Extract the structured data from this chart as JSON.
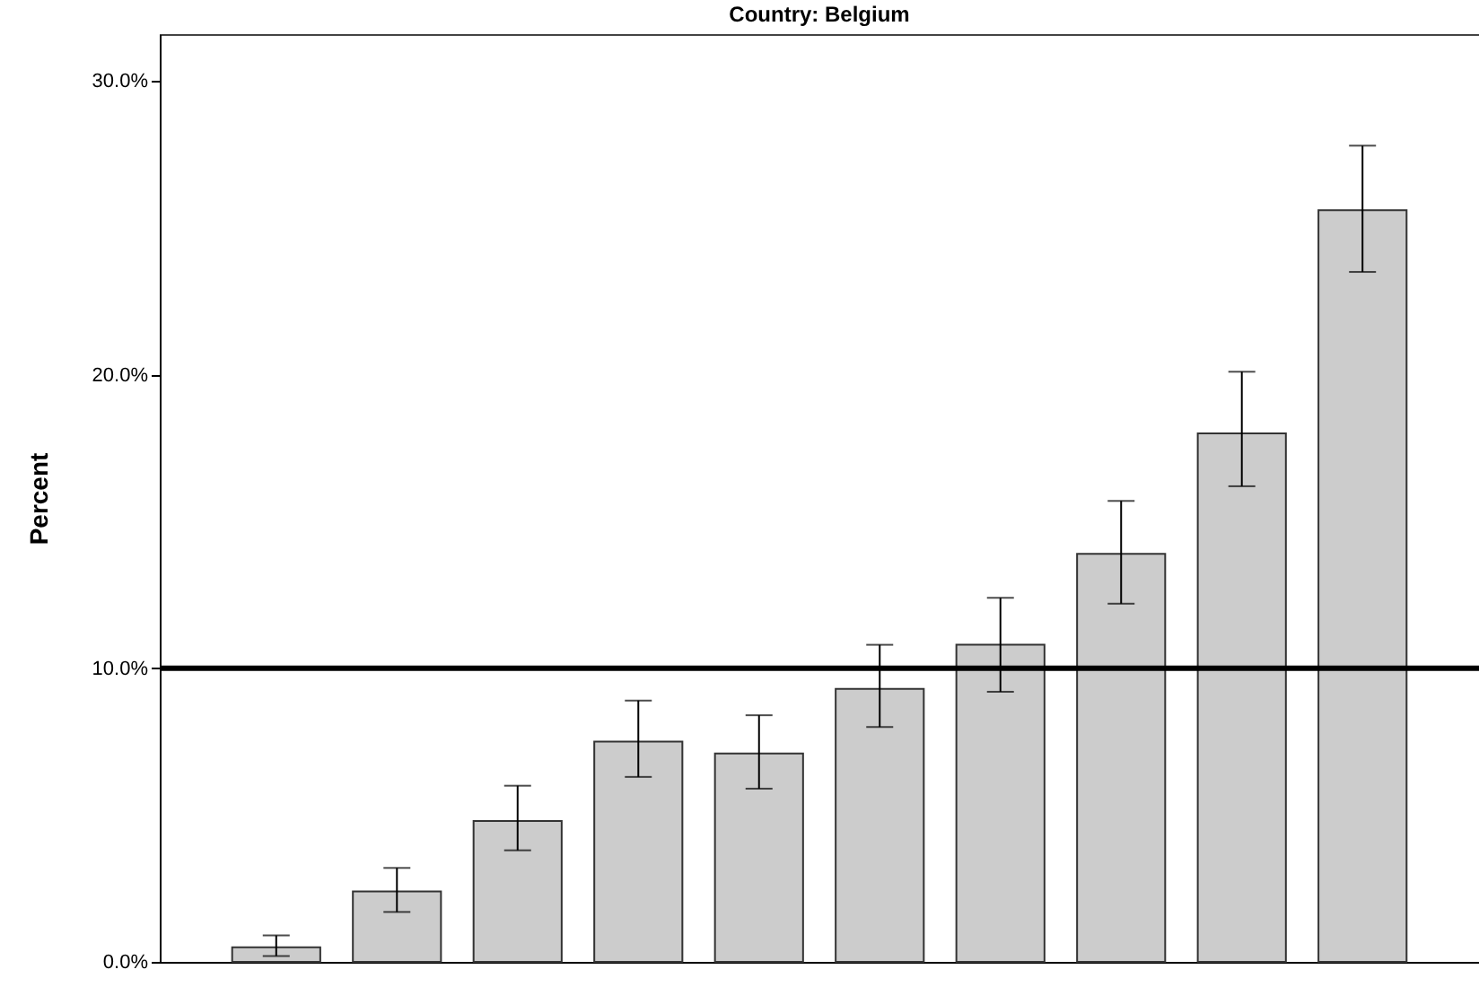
{
  "chart_data": {
    "type": "bar",
    "title": "Country: Belgium",
    "ylabel": "Percent",
    "categories": [
      null,
      null,
      null,
      null,
      null,
      null,
      null,
      null,
      null,
      null
    ],
    "values": [
      0.5,
      2.4,
      4.8,
      7.5,
      7.1,
      9.3,
      10.8,
      13.9,
      18.0,
      25.6
    ],
    "errors": [
      [
        0.2,
        0.9
      ],
      [
        1.7,
        3.2
      ],
      [
        3.8,
        6.0
      ],
      [
        6.3,
        8.9
      ],
      [
        5.9,
        8.4
      ],
      [
        8.0,
        10.8
      ],
      [
        9.2,
        12.4
      ],
      [
        12.2,
        15.7
      ],
      [
        16.2,
        20.1
      ],
      [
        23.5,
        27.8
      ]
    ],
    "color": "#cccccc",
    "ylim": [
      0,
      31.6
    ],
    "yticks": [
      {
        "value": 0,
        "label": "0.0%"
      },
      {
        "value": 10,
        "label": "10.0%"
      },
      {
        "value": 20,
        "label": "20.0%"
      },
      {
        "value": 30,
        "label": "30.0%"
      }
    ],
    "ref_lines": [
      {
        "axis": "y",
        "value": 10,
        "color": "#000000"
      }
    ],
    "grid": false
  }
}
